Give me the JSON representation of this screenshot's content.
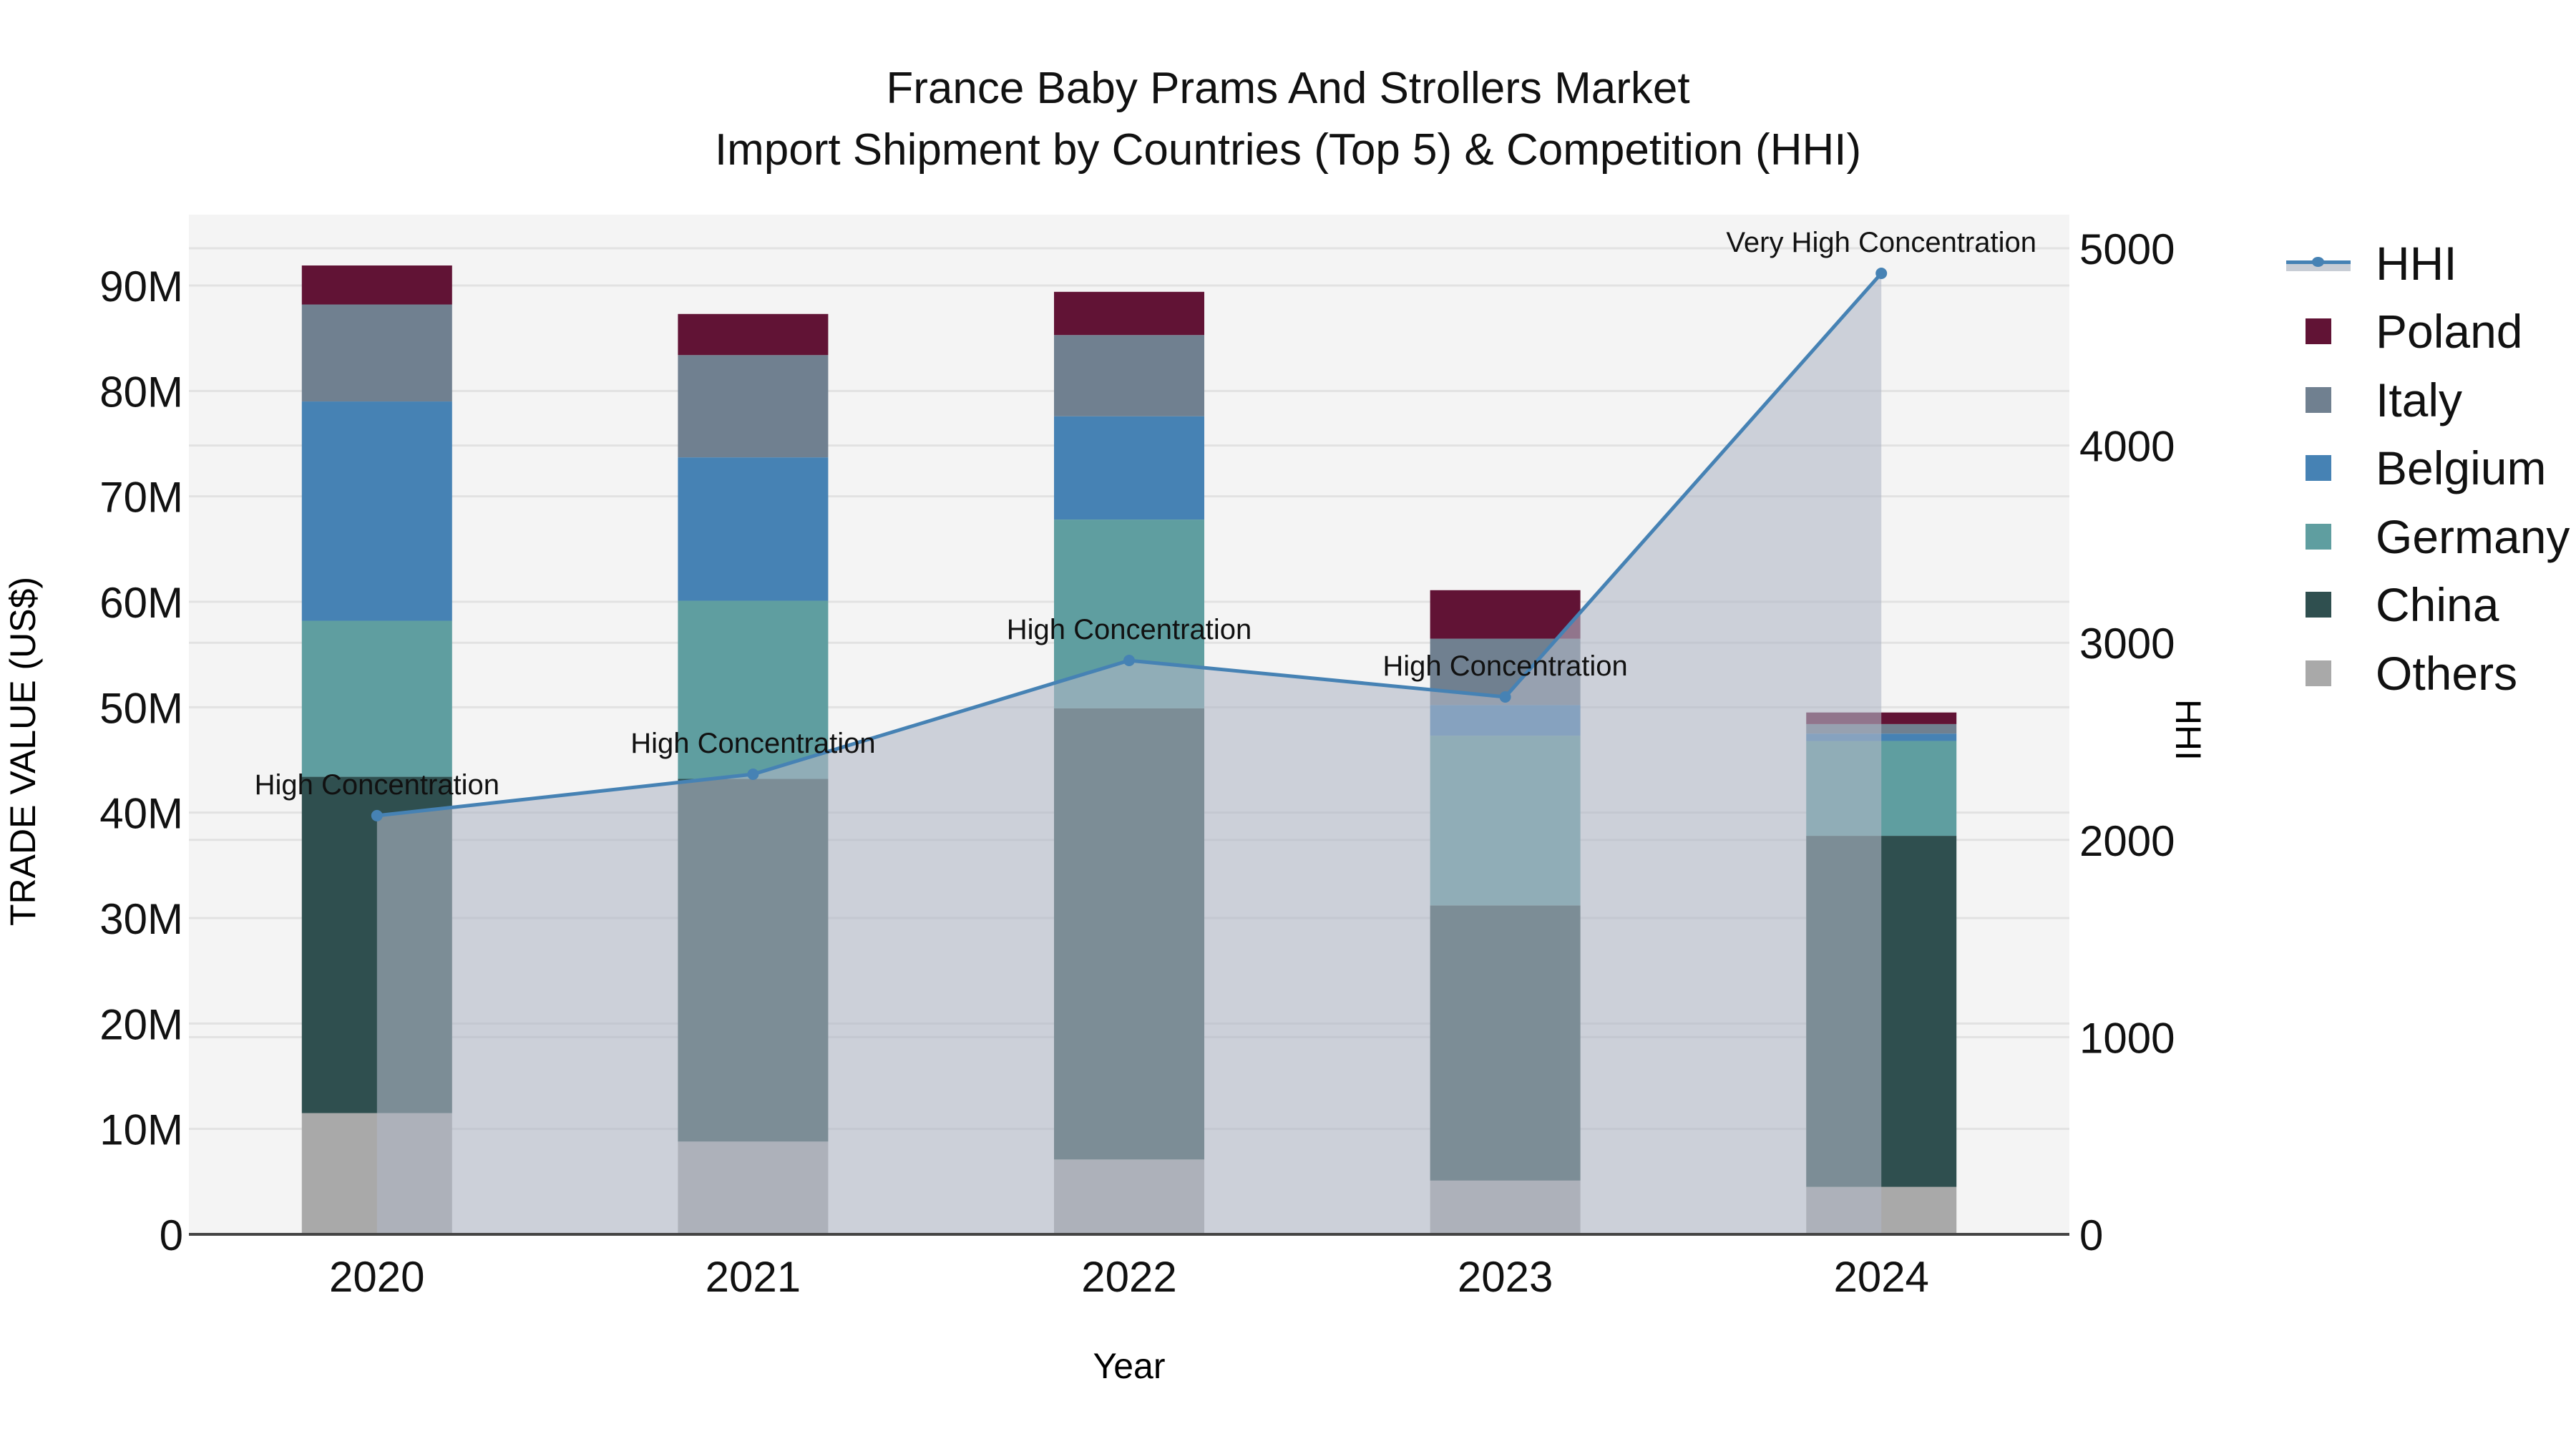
{
  "title": {
    "line1": "France Baby Prams And Strollers Market",
    "line2": "Import Shipment by Countries (Top 5) & Competition (HHI)"
  },
  "axes": {
    "x_title": "Year",
    "y_left_title": "TRADE VALUE (US$)",
    "y_right_title": "HHI",
    "y_left_ticks": [
      "0",
      "10M",
      "20M",
      "30M",
      "40M",
      "50M",
      "60M",
      "70M",
      "80M",
      "90M"
    ],
    "y_right_ticks": [
      "0",
      "1000",
      "2000",
      "3000",
      "4000",
      "5000"
    ]
  },
  "legend": {
    "items": [
      {
        "label": "HHI",
        "type": "line",
        "color": "#4682b4"
      },
      {
        "label": "Poland",
        "type": "bar",
        "color": "#611335"
      },
      {
        "label": "Italy",
        "type": "bar",
        "color": "#708090"
      },
      {
        "label": "Belgium",
        "type": "bar",
        "color": "#4682b4"
      },
      {
        "label": "Germany",
        "type": "bar",
        "color": "#5f9ea0"
      },
      {
        "label": "China",
        "type": "bar",
        "color": "#2f4f4f"
      },
      {
        "label": "Others",
        "type": "bar",
        "color": "#a9a9a9"
      }
    ]
  },
  "colors": {
    "plot_bg": "#f4f4f4",
    "grid": "#e2e2e2",
    "hhi_line": "#4682b4",
    "hhi_area": "rgba(176,184,198,0.6)"
  },
  "chart_data": {
    "type": "bar",
    "stacked": true,
    "title": "France Baby Prams And Strollers Market — Import Shipment by Countries (Top 5) & Competition (HHI)",
    "xlabel": "Year",
    "ylabel": "TRADE VALUE (US$)",
    "y2label": "HHI",
    "ylim": [
      0,
      96
    ],
    "y2lim": [
      0,
      5160
    ],
    "unit": "M US$",
    "grid": true,
    "legend_position": "right",
    "categories": [
      "2020",
      "2021",
      "2022",
      "2023",
      "2024"
    ],
    "series": [
      {
        "name": "Others",
        "color": "#a9a9a9",
        "values": [
          11.5,
          8.8,
          7.1,
          5.1,
          4.5
        ]
      },
      {
        "name": "China",
        "color": "#2f4f4f",
        "values": [
          31.9,
          34.4,
          42.8,
          26.1,
          33.3
        ]
      },
      {
        "name": "Germany",
        "color": "#5f9ea0",
        "values": [
          14.8,
          16.9,
          17.9,
          16.1,
          9.0
        ]
      },
      {
        "name": "Belgium",
        "color": "#4682b4",
        "values": [
          20.8,
          13.6,
          9.8,
          2.9,
          0.7
        ]
      },
      {
        "name": "Italy",
        "color": "#708090",
        "values": [
          9.2,
          9.7,
          7.7,
          6.3,
          0.9
        ]
      },
      {
        "name": "Poland",
        "color": "#611335",
        "values": [
          3.7,
          3.9,
          4.1,
          4.6,
          1.1
        ]
      }
    ],
    "line_series": {
      "name": "HHI",
      "axis": "right",
      "type": "line+area",
      "color": "#4682b4",
      "values": [
        2123,
        2333,
        2910,
        2725,
        4873
      ],
      "annotations": [
        "High Concentration",
        "High Concentration",
        "High Concentration",
        "High Concentration",
        "Very High Concentration"
      ]
    }
  }
}
